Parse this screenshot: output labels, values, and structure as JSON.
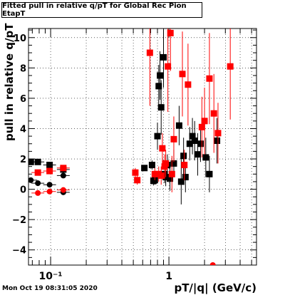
{
  "chart_data": {
    "type": "scatter",
    "title": "Fitted pull in relative q/pT  for Global Rec Pion EtapT",
    "xlabel": "pT/|q| (GeV/c)",
    "ylabel": "pull in relative q/pT",
    "xscale": "log",
    "xlim": [
      0.065,
      5.5
    ],
    "ylim": [
      -5,
      10.6
    ],
    "grid": true,
    "x_tick_labels": [
      "10⁻¹",
      "1"
    ],
    "y_tick_labels": [
      "−4",
      "−2",
      "0",
      "2",
      "4",
      "6",
      "8",
      "10"
    ],
    "series": [
      {
        "color": "#000000",
        "marker": "square",
        "points": [
          {
            "x": 0.068,
            "y": 1.8,
            "err": 0.15
          },
          {
            "x": 0.078,
            "y": 1.8,
            "err": 0.15
          },
          {
            "x": 0.098,
            "y": 1.6,
            "err": 0.15
          },
          {
            "x": 0.128,
            "y": 1.3,
            "err": 0.15
          },
          {
            "x": 0.62,
            "y": 1.4,
            "err": 0.2
          },
          {
            "x": 0.72,
            "y": 1.6,
            "err": 0.3
          },
          {
            "x": 0.74,
            "y": 0.55,
            "err": 0.3
          },
          {
            "x": 0.76,
            "y": 0.6,
            "err": 0.3
          },
          {
            "x": 0.8,
            "y": 3.5,
            "err": 0.9
          },
          {
            "x": 0.82,
            "y": 6.8,
            "err": 1.4
          },
          {
            "x": 0.84,
            "y": 7.5,
            "err": 1.6
          },
          {
            "x": 0.86,
            "y": 5.4,
            "err": 1.8
          },
          {
            "x": 0.9,
            "y": 8.7,
            "err": 2.0
          },
          {
            "x": 0.92,
            "y": 1.0,
            "err": 0.6
          },
          {
            "x": 0.94,
            "y": 0.8,
            "err": 0.6
          },
          {
            "x": 0.97,
            "y": 1.6,
            "err": 0.7
          },
          {
            "x": 1.02,
            "y": 0.7,
            "err": 0.8
          },
          {
            "x": 1.1,
            "y": 1.7,
            "err": 0.9
          },
          {
            "x": 1.22,
            "y": 4.2,
            "err": 1.3
          },
          {
            "x": 1.27,
            "y": 0.5,
            "err": 1.5
          },
          {
            "x": 1.33,
            "y": 2.2,
            "err": 1.2
          },
          {
            "x": 1.38,
            "y": 0.8,
            "err": 1.0
          },
          {
            "x": 1.5,
            "y": 3.0,
            "err": 1.1
          },
          {
            "x": 1.58,
            "y": 3.5,
            "err": 1.2
          },
          {
            "x": 1.65,
            "y": 3.2,
            "err": 1.3
          },
          {
            "x": 1.75,
            "y": 2.3,
            "err": 1.4
          },
          {
            "x": 1.85,
            "y": 3.0,
            "err": 1.2
          },
          {
            "x": 2.05,
            "y": 2.1,
            "err": 1.3
          },
          {
            "x": 2.2,
            "y": 1.0,
            "err": 1.2
          },
          {
            "x": 2.55,
            "y": 3.2,
            "err": 1.5
          },
          {
            "x": 0.068,
            "y": 0.6,
            "err": 0.1
          },
          {
            "x": 0.078,
            "y": 0.4,
            "err": 0.1
          },
          {
            "x": 0.098,
            "y": 0.3,
            "err": 0.1
          },
          {
            "x": 0.128,
            "y": 0.9,
            "err": 0.1
          },
          {
            "x": 0.128,
            "y": -0.2,
            "err": 0.1
          }
        ]
      },
      {
        "color": "#ff0000",
        "marker": "square",
        "points": [
          {
            "x": 0.078,
            "y": 1.1,
            "err": 0.15
          },
          {
            "x": 0.098,
            "y": 1.2,
            "err": 0.15
          },
          {
            "x": 0.128,
            "y": 1.4,
            "err": 0.15
          },
          {
            "x": 0.078,
            "y": -0.25,
            "err": 0.1
          },
          {
            "x": 0.098,
            "y": -0.15,
            "err": 0.1
          },
          {
            "x": 0.128,
            "y": -0.05,
            "err": 0.1
          },
          {
            "x": 0.52,
            "y": 1.1,
            "err": 0.3
          },
          {
            "x": 0.54,
            "y": 0.6,
            "err": 0.3
          },
          {
            "x": 0.69,
            "y": 9.0,
            "err": 3.5
          },
          {
            "x": 0.76,
            "y": 1.0,
            "err": 0.4
          },
          {
            "x": 0.82,
            "y": 1.0,
            "err": 0.5
          },
          {
            "x": 0.86,
            "y": 0.9,
            "err": 0.6
          },
          {
            "x": 0.88,
            "y": 2.7,
            "err": 1.0
          },
          {
            "x": 0.92,
            "y": 1.5,
            "err": 0.8
          },
          {
            "x": 0.94,
            "y": 1.7,
            "err": 0.9
          },
          {
            "x": 0.98,
            "y": 8.1,
            "err": 3.0
          },
          {
            "x": 1.03,
            "y": 10.3,
            "err": 2.5
          },
          {
            "x": 1.06,
            "y": 1.0,
            "err": 1.2
          },
          {
            "x": 1.1,
            "y": 3.3,
            "err": 1.5
          },
          {
            "x": 1.3,
            "y": 7.6,
            "err": 2.8
          },
          {
            "x": 1.35,
            "y": 1.6,
            "err": 1.0
          },
          {
            "x": 1.45,
            "y": 6.9,
            "err": 2.7
          },
          {
            "x": 1.9,
            "y": 4.1,
            "err": 2.0
          },
          {
            "x": 2.0,
            "y": 4.5,
            "err": 2.2
          },
          {
            "x": 2.2,
            "y": 7.3,
            "err": 3.0
          },
          {
            "x": 2.4,
            "y": 5.0,
            "err": 2.6
          },
          {
            "x": 2.6,
            "y": 3.7,
            "err": 2.0
          },
          {
            "x": 3.3,
            "y": 8.1,
            "err": 3.5
          },
          {
            "x": 2.35,
            "y": -5.0,
            "err": 0
          }
        ]
      }
    ]
  },
  "title": "Fitted pull in relative q/pT  for Global Rec Pion EtapT",
  "timestamp": "Mon Oct 19 08:31:05 2020"
}
